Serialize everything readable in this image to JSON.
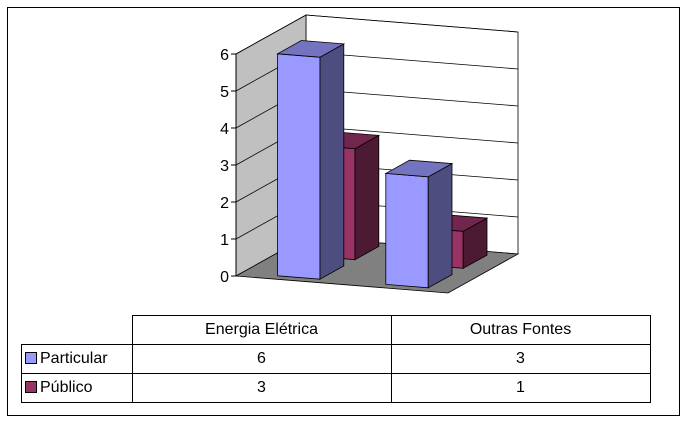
{
  "chart_data": {
    "type": "bar",
    "categories": [
      "Energia Elétrica",
      "Outras Fontes"
    ],
    "series": [
      {
        "name": "Particular",
        "values": [
          6,
          3
        ],
        "color": "#9999ff"
      },
      {
        "name": "Público",
        "values": [
          3,
          1
        ],
        "color": "#993366"
      }
    ],
    "ylim": [
      0,
      6
    ],
    "yticks": [
      "0",
      "1",
      "2",
      "3",
      "4",
      "5",
      "6"
    ],
    "grid": true,
    "legend": "data-table",
    "style": "3d-column"
  }
}
